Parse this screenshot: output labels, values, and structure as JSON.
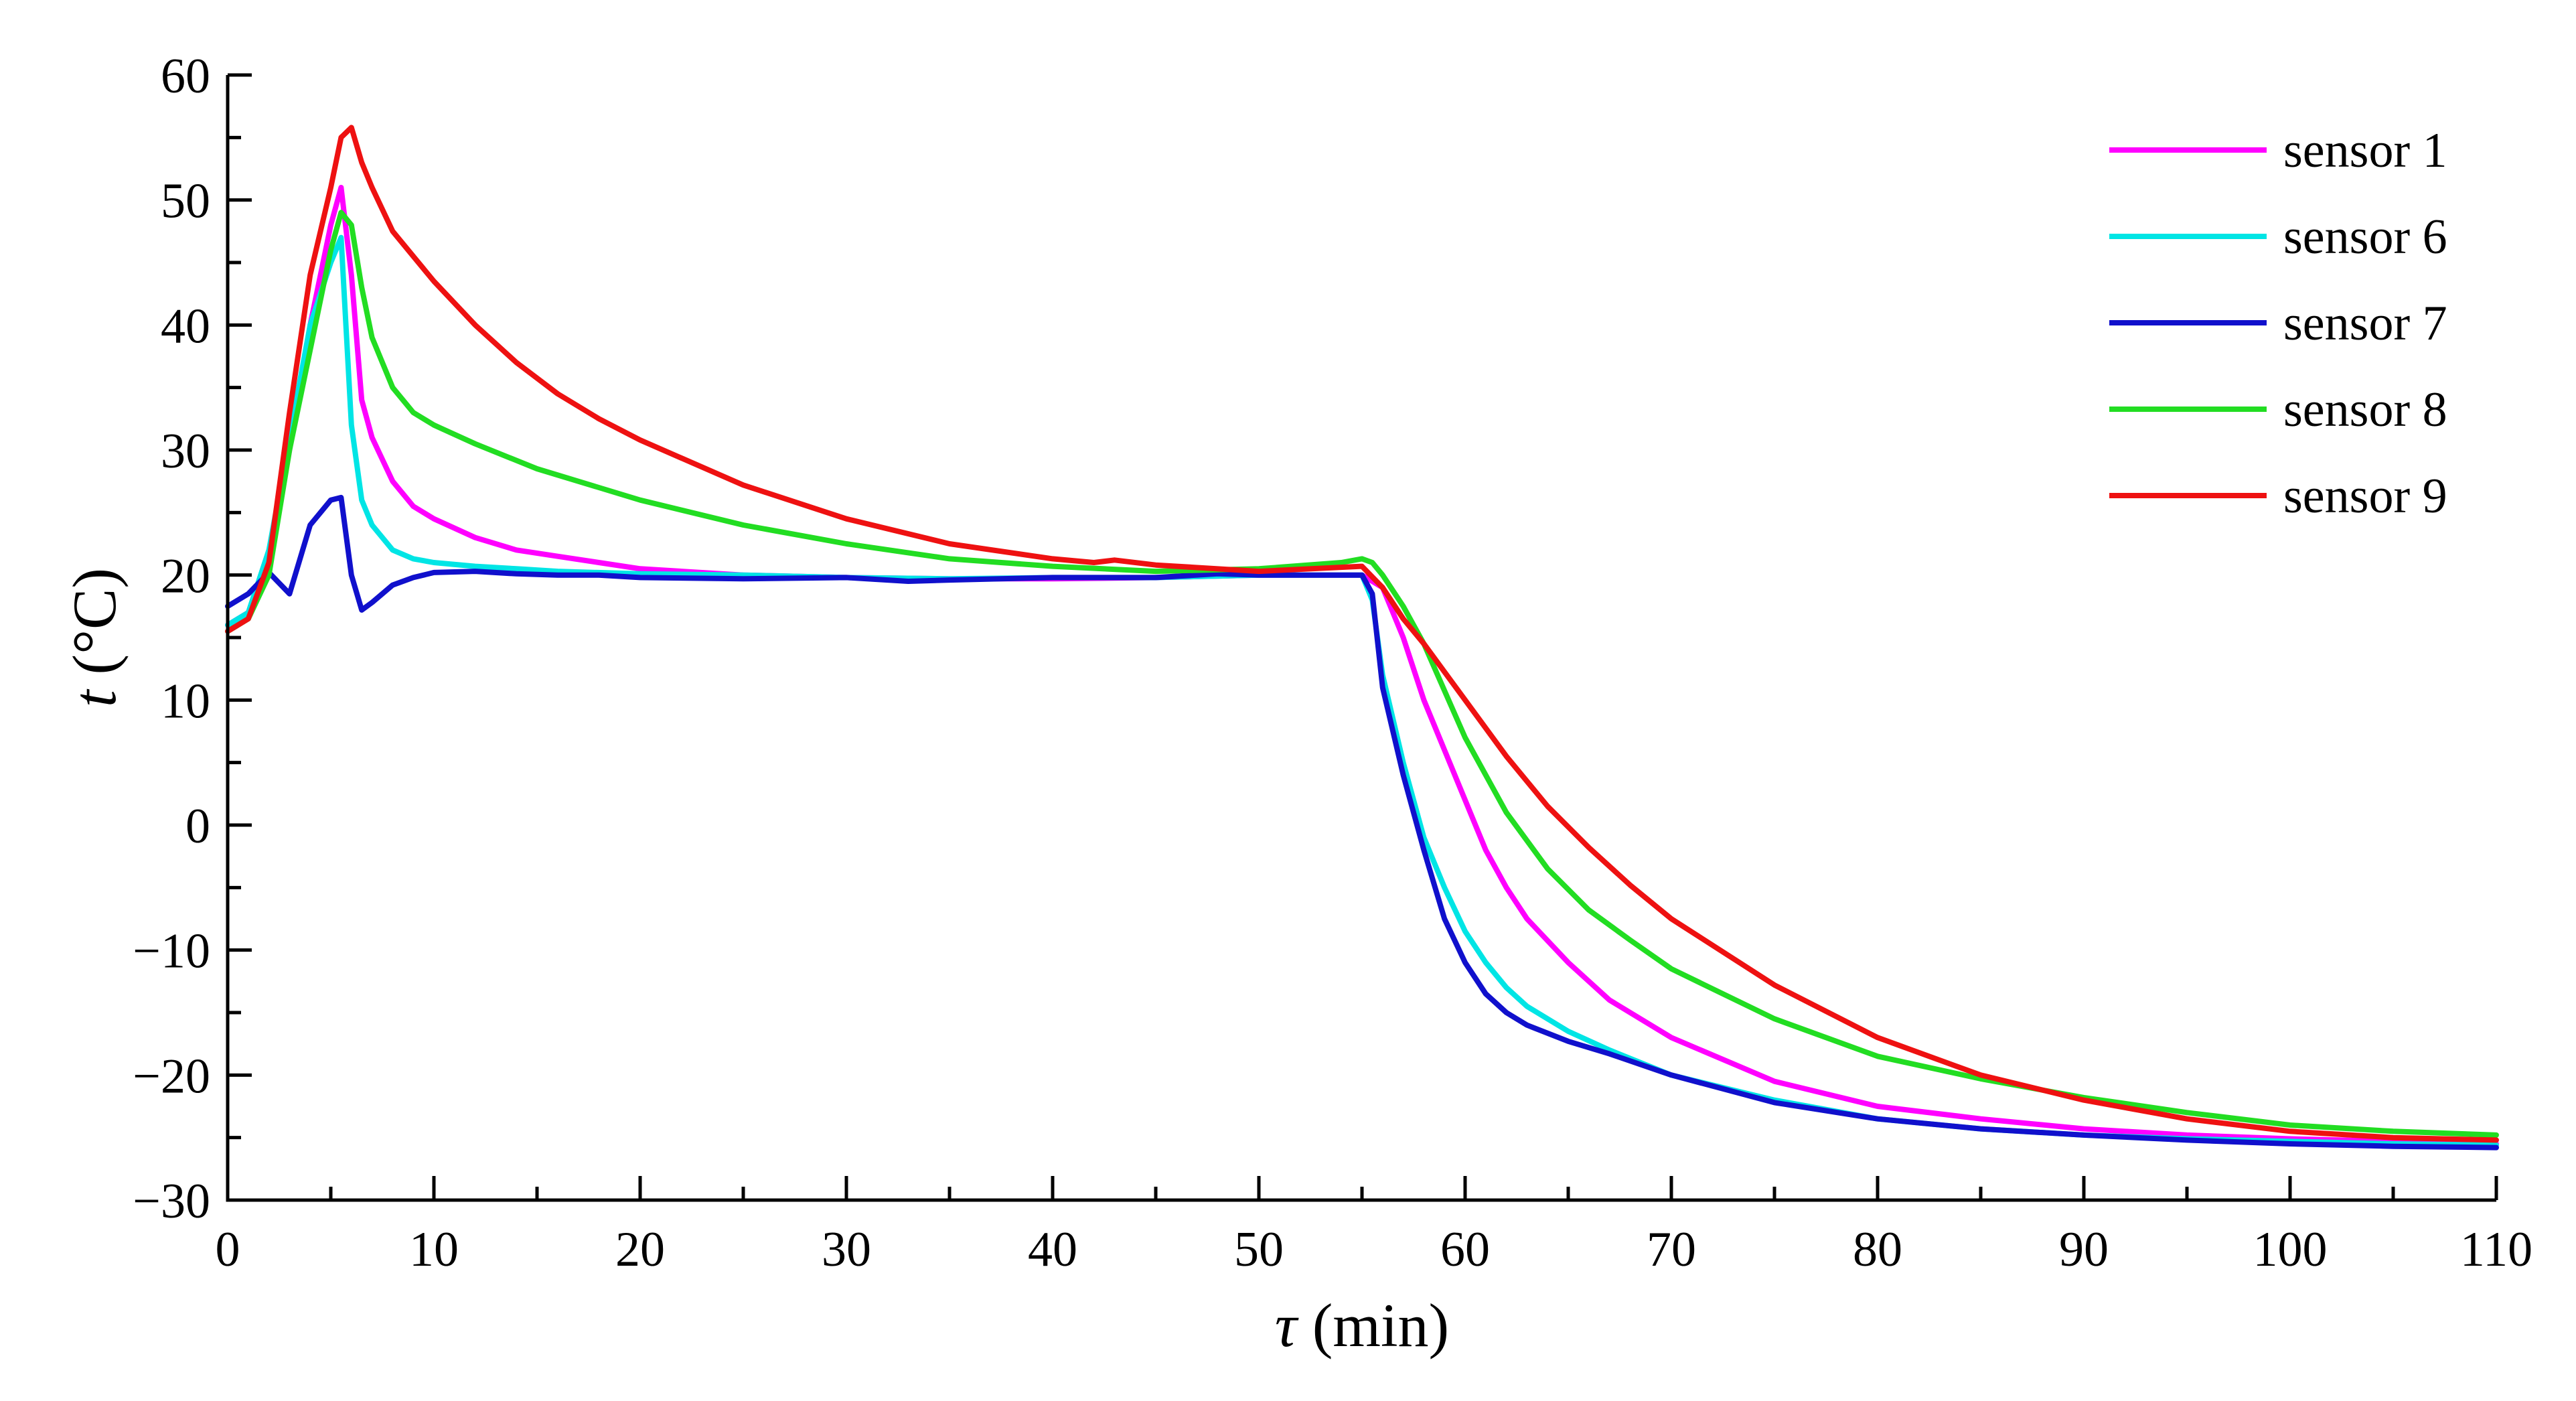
{
  "chart_data": {
    "type": "line",
    "title": "",
    "xlabel": {
      "var": "τ",
      "unit": " (min)"
    },
    "ylabel": {
      "var": "t",
      "unit": "°C"
    },
    "xlim": [
      0,
      110
    ],
    "ylim": [
      -30,
      60
    ],
    "xticks": [
      0,
      10,
      20,
      30,
      40,
      50,
      60,
      70,
      80,
      90,
      100,
      110
    ],
    "xtick_labels": [
      "0",
      "10",
      "20",
      "30",
      "40",
      "50",
      "60",
      "70",
      "80",
      "90",
      "100",
      "110"
    ],
    "yticks": [
      -30,
      -20,
      -10,
      0,
      10,
      20,
      30,
      40,
      50,
      60
    ],
    "ytick_labels": [
      "−30",
      "−20",
      "−10",
      "0",
      "10",
      "20",
      "30",
      "40",
      "50",
      "60"
    ],
    "grid": false,
    "legend_position": "top-right",
    "series": [
      {
        "name": "sensor 1",
        "color": "#ff00ff",
        "x": [
          0,
          1,
          2,
          3,
          4,
          5,
          5.5,
          6,
          6.5,
          7,
          8,
          9,
          10,
          12,
          14,
          16,
          18,
          20,
          25,
          30,
          35,
          40,
          45,
          50,
          55,
          56,
          57,
          58,
          59,
          60,
          61,
          62,
          63,
          65,
          67,
          70,
          75,
          80,
          85,
          90,
          95,
          100,
          105,
          110
        ],
        "y": [
          16,
          17,
          21,
          30,
          40,
          48,
          51,
          44,
          34,
          31,
          27.5,
          25.5,
          24.5,
          23,
          22,
          21.5,
          21,
          20.5,
          20,
          19.8,
          19.7,
          19.7,
          19.8,
          20,
          20,
          19,
          15,
          10,
          6,
          2,
          -2,
          -5,
          -7.5,
          -11,
          -14,
          -17,
          -20.5,
          -22.5,
          -23.5,
          -24.3,
          -24.8,
          -25.1,
          -25.3,
          -25.5
        ]
      },
      {
        "name": "sensor 6",
        "color": "#00e5e5",
        "x": [
          0,
          1,
          2,
          3,
          4,
          5,
          5.5,
          6,
          6.5,
          7,
          8,
          9,
          10,
          12,
          14,
          16,
          20,
          25,
          30,
          35,
          40,
          45,
          50,
          55,
          55.5,
          56,
          57,
          58,
          59,
          60,
          61,
          62,
          63,
          65,
          67,
          70,
          75,
          80,
          85,
          90,
          95,
          100,
          105,
          110
        ],
        "y": [
          16,
          17,
          22,
          31,
          40,
          45,
          47,
          32,
          26,
          24,
          22,
          21.3,
          21,
          20.7,
          20.5,
          20.3,
          20.1,
          20,
          19.8,
          19.7,
          19.8,
          19.8,
          20,
          20,
          18,
          12,
          5,
          -1,
          -5,
          -8.5,
          -11,
          -13,
          -14.5,
          -16.5,
          -18,
          -20,
          -22,
          -23.5,
          -24.3,
          -24.8,
          -25.1,
          -25.3,
          -25.5,
          -25.6
        ]
      },
      {
        "name": "sensor 7",
        "color": "#1010cc",
        "x": [
          0,
          1,
          2,
          3,
          4,
          5,
          5.5,
          6,
          6.5,
          7,
          8,
          9,
          10,
          12,
          14,
          16,
          18,
          20,
          25,
          30,
          33,
          35,
          40,
          45,
          48,
          50,
          55,
          55.5,
          56,
          57,
          58,
          59,
          60,
          61,
          62,
          63,
          65,
          67,
          70,
          75,
          80,
          85,
          90,
          95,
          100,
          105,
          110
        ],
        "y": [
          17.5,
          18.5,
          20.2,
          18.5,
          24,
          26,
          26.2,
          20,
          17.2,
          17.8,
          19.2,
          19.8,
          20.2,
          20.3,
          20.1,
          20,
          20,
          19.8,
          19.7,
          19.8,
          19.5,
          19.6,
          19.8,
          19.8,
          20.1,
          20,
          20,
          18.5,
          11,
          4,
          -2,
          -7.5,
          -11,
          -13.5,
          -15,
          -16,
          -17.3,
          -18.3,
          -20,
          -22.2,
          -23.5,
          -24.3,
          -24.8,
          -25.2,
          -25.5,
          -25.7,
          -25.8
        ]
      },
      {
        "name": "sensor 8",
        "color": "#22dd22",
        "x": [
          0,
          1,
          2,
          3,
          4,
          5,
          5.5,
          6,
          6.5,
          7,
          8,
          9,
          10,
          12,
          15,
          20,
          25,
          30,
          35,
          40,
          45,
          50,
          54,
          55,
          55.5,
          56,
          57,
          58,
          60,
          62,
          64,
          66,
          68,
          70,
          75,
          80,
          85,
          90,
          95,
          100,
          105,
          110
        ],
        "y": [
          15.5,
          16.5,
          20,
          30,
          38,
          46,
          49,
          48,
          43,
          39,
          35,
          33,
          32,
          30.5,
          28.5,
          26,
          24,
          22.5,
          21.3,
          20.7,
          20.3,
          20.5,
          21,
          21.3,
          21,
          20,
          17.5,
          14.5,
          7,
          1,
          -3.5,
          -6.8,
          -9.2,
          -11.5,
          -15.5,
          -18.5,
          -20.3,
          -21.8,
          -23,
          -24,
          -24.5,
          -24.8
        ]
      },
      {
        "name": "sensor 9",
        "color": "#ee1111",
        "x": [
          0,
          1,
          2,
          3,
          4,
          5,
          5.5,
          6,
          6.5,
          7,
          8,
          9,
          10,
          12,
          14,
          16,
          18,
          20,
          25,
          30,
          35,
          40,
          42,
          43,
          45,
          50,
          55,
          56,
          57,
          58,
          60,
          62,
          64,
          66,
          68,
          70,
          75,
          80,
          85,
          90,
          95,
          100,
          105,
          110
        ],
        "y": [
          15.5,
          16.5,
          21,
          33,
          44,
          51,
          55,
          55.8,
          53,
          51,
          47.5,
          45.5,
          43.5,
          40,
          37,
          34.5,
          32.5,
          30.8,
          27.2,
          24.5,
          22.5,
          21.3,
          21,
          21.2,
          20.8,
          20.3,
          20.7,
          19,
          16.5,
          14.5,
          10,
          5.5,
          1.5,
          -1.8,
          -4.8,
          -7.5,
          -12.8,
          -17,
          -20,
          -22,
          -23.5,
          -24.5,
          -25,
          -25.2
        ]
      }
    ]
  }
}
